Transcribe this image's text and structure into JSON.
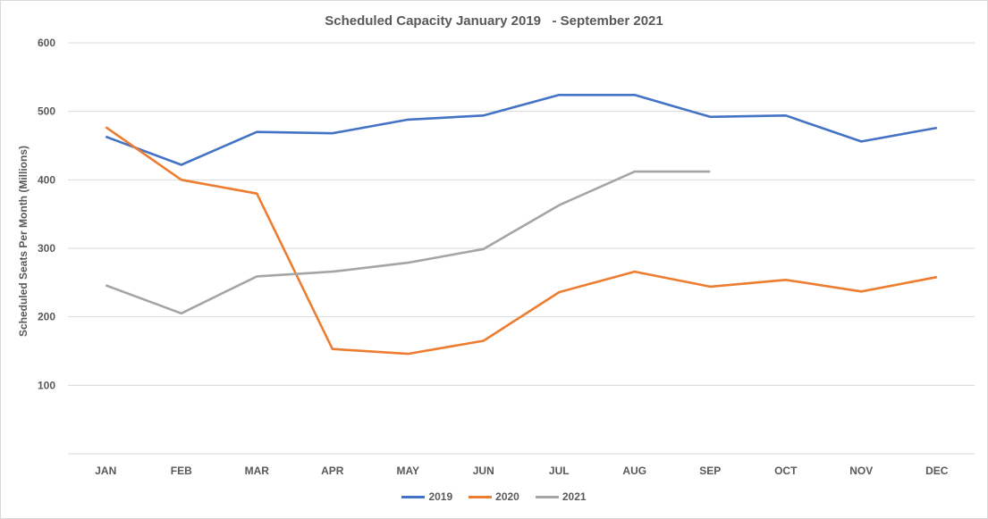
{
  "chart_data": {
    "type": "line",
    "title": "Scheduled Capacity January 2019   - September 2021",
    "xlabel": "",
    "ylabel": "Scheduled Seats Per Month (Millions)",
    "categories": [
      "JAN",
      "FEB",
      "MAR",
      "APR",
      "MAY",
      "JUN",
      "JUL",
      "AUG",
      "SEP",
      "OCT",
      "NOV",
      "DEC"
    ],
    "ylim": [
      0,
      600
    ],
    "yticks": [
      100,
      200,
      300,
      400,
      500,
      600
    ],
    "grid": true,
    "legend_position": "bottom",
    "series": [
      {
        "name": "2019",
        "color": "#4472c4",
        "values": [
          463,
          422,
          470,
          468,
          488,
          494,
          524,
          524,
          492,
          494,
          456,
          476
        ]
      },
      {
        "name": "2020",
        "color": "#ed7d31",
        "values": [
          477,
          400,
          380,
          153,
          146,
          165,
          236,
          266,
          244,
          254,
          237,
          258
        ]
      },
      {
        "name": "2021",
        "color": "#a5a5a5",
        "values": [
          246,
          205,
          259,
          266,
          279,
          299,
          363,
          412,
          412,
          null,
          null,
          null
        ]
      }
    ]
  }
}
